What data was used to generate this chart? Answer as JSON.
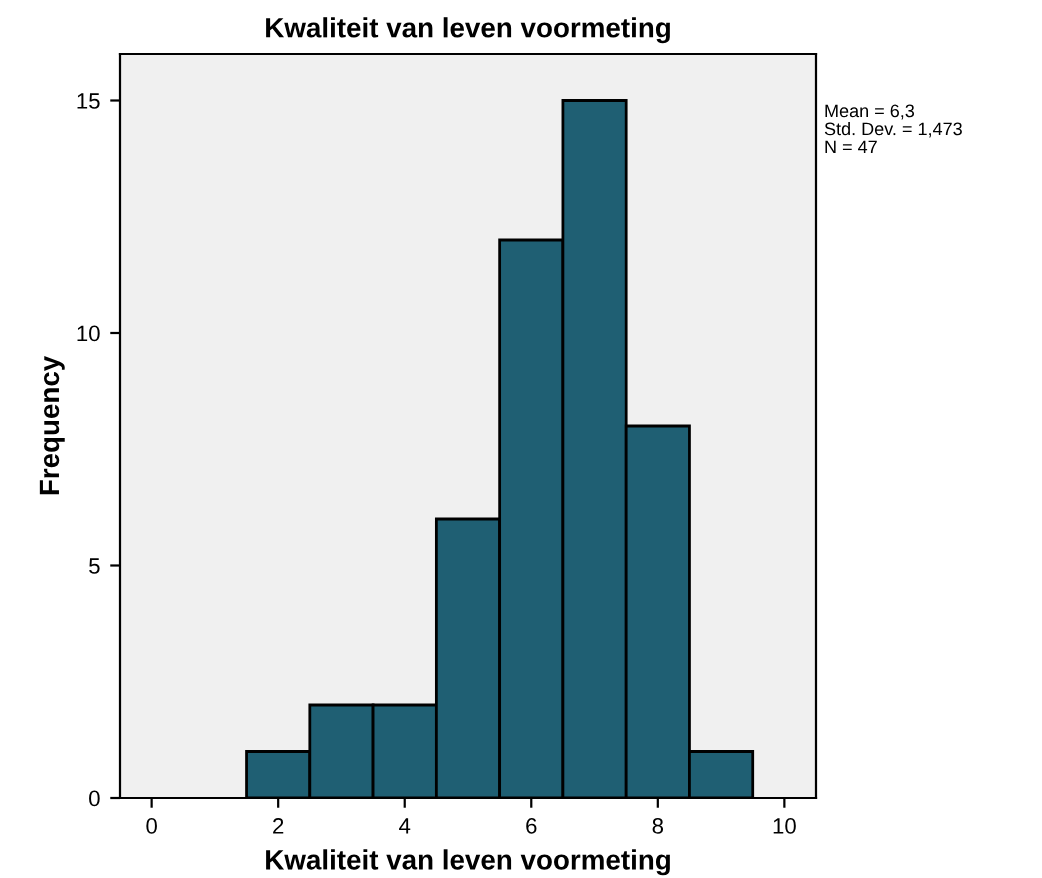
{
  "chart_data": {
    "type": "histogram",
    "title": "Kwaliteit van leven voormeting",
    "xlabel": "Kwaliteit van leven voormeting",
    "ylabel": "Frequency",
    "bins": [
      1.5,
      2.5,
      3.5,
      4.5,
      5.5,
      6.5,
      7.5,
      8.5,
      9.5
    ],
    "values": [
      1,
      2,
      2,
      6,
      12,
      15,
      8,
      1
    ],
    "color": "#1f5f73",
    "xlim": [
      -0.5,
      10.5
    ],
    "xticks": [
      0,
      2,
      4,
      6,
      8,
      10
    ],
    "ylim": [
      0,
      16
    ],
    "yticks": [
      0,
      5,
      10,
      15
    ],
    "grid": false,
    "annotations": [
      "Mean = 6,3",
      "Std. Dev. = 1,473",
      "N = 47"
    ]
  }
}
